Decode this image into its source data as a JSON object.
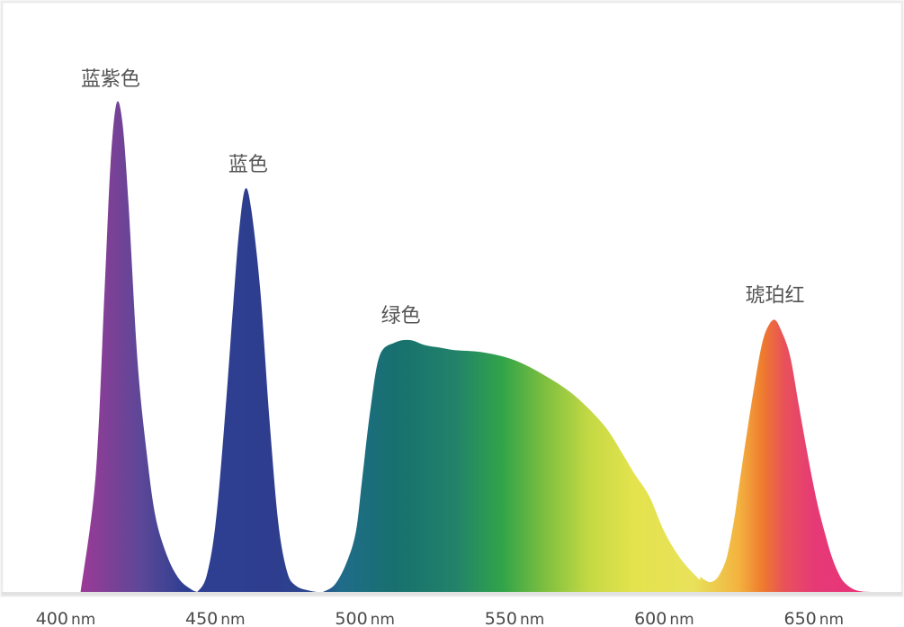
{
  "chart_data": {
    "type": "area",
    "title": "",
    "xlabel": "",
    "ylabel": "",
    "x_unit": "nm",
    "xlim": [
      400,
      672
    ],
    "ylim": [
      0,
      1.0
    ],
    "x_ticks": [
      {
        "value": 400,
        "label": "400",
        "unit": "nm"
      },
      {
        "value": 450,
        "label": "450",
        "unit": "nm"
      },
      {
        "value": 500,
        "label": "500",
        "unit": "nm"
      },
      {
        "value": 550,
        "label": "550",
        "unit": "nm"
      },
      {
        "value": 600,
        "label": "600",
        "unit": "nm"
      },
      {
        "value": 650,
        "label": "650",
        "unit": "nm"
      }
    ],
    "grid": false,
    "series": [
      {
        "x": [
          405,
          410,
          413,
          415,
          417,
          419,
          421,
          424,
          427,
          430,
          434,
          438,
          442,
          444
        ],
        "y": [
          0,
          0.23,
          0.6,
          0.85,
          0.97,
          0.93,
          0.77,
          0.46,
          0.28,
          0.15,
          0.07,
          0.025,
          0.005,
          0
        ]
      },
      {
        "x": [
          444,
          447,
          450,
          453,
          456,
          458,
          460,
          462,
          465,
          468,
          471,
          474,
          477,
          481,
          484,
          486
        ],
        "y": [
          0,
          0.03,
          0.13,
          0.33,
          0.57,
          0.72,
          0.8,
          0.76,
          0.6,
          0.35,
          0.14,
          0.04,
          0.012,
          0.003,
          0,
          0
        ]
      },
      {
        "x": [
          486,
          490,
          494,
          497,
          499,
          502,
          505,
          510,
          515,
          520,
          525,
          530,
          540,
          550,
          560,
          570,
          580,
          586,
          590,
          595,
          600,
          605,
          610,
          614,
          618,
          622,
          626
        ],
        "y": [
          0,
          0.015,
          0.06,
          0.12,
          0.22,
          0.37,
          0.47,
          0.495,
          0.5,
          0.49,
          0.485,
          0.48,
          0.475,
          0.46,
          0.43,
          0.39,
          0.33,
          0.275,
          0.235,
          0.19,
          0.12,
          0.07,
          0.035,
          0.017,
          0.03,
          0.09,
          0.22
        ]
      },
      {
        "x": [
          612,
          616,
          620,
          623,
          625,
          628,
          631,
          633,
          635,
          637,
          639,
          642,
          645,
          648,
          651,
          654,
          656,
          658,
          660,
          663,
          666,
          669
        ],
        "y": [
          0.03,
          0.02,
          0.05,
          0.13,
          0.21,
          0.33,
          0.44,
          0.5,
          0.53,
          0.54,
          0.52,
          0.47,
          0.37,
          0.27,
          0.18,
          0.11,
          0.07,
          0.04,
          0.02,
          0.006,
          0.001,
          0
        ]
      }
    ],
    "peak_annotations": [
      {
        "text": "蓝紫色",
        "x": 415
      },
      {
        "text": "蓝色",
        "x": 461
      },
      {
        "text": "绿色",
        "x": 512
      },
      {
        "text": "琥珀红",
        "x": 637
      }
    ],
    "gradient_stops": [
      {
        "wavelength": 405,
        "color": "#9b3a97"
      },
      {
        "wavelength": 425,
        "color": "#5d4797"
      },
      {
        "wavelength": 440,
        "color": "#2e3f92"
      },
      {
        "wavelength": 470,
        "color": "#2e3d8e"
      },
      {
        "wavelength": 485,
        "color": "#2a4a8e"
      },
      {
        "wavelength": 492,
        "color": "#1f6c8a"
      },
      {
        "wavelength": 510,
        "color": "#17706e"
      },
      {
        "wavelength": 530,
        "color": "#21826a"
      },
      {
        "wavelength": 546,
        "color": "#31a449"
      },
      {
        "wavelength": 560,
        "color": "#7dbf3f"
      },
      {
        "wavelength": 575,
        "color": "#c4d944"
      },
      {
        "wavelength": 590,
        "color": "#e4e34d"
      },
      {
        "wavelength": 610,
        "color": "#e8e15a"
      },
      {
        "wavelength": 625,
        "color": "#f3b23f"
      },
      {
        "wavelength": 633,
        "color": "#ee7a2e"
      },
      {
        "wavelength": 640,
        "color": "#e8525a"
      },
      {
        "wavelength": 650,
        "color": "#e63a76"
      },
      {
        "wavelength": 670,
        "color": "#e8327a"
      }
    ],
    "colors": {
      "baseline": "#e2e2e2",
      "frame": "#ececec",
      "label_text": "#555555",
      "tick_text": "#4a4a4a"
    }
  }
}
